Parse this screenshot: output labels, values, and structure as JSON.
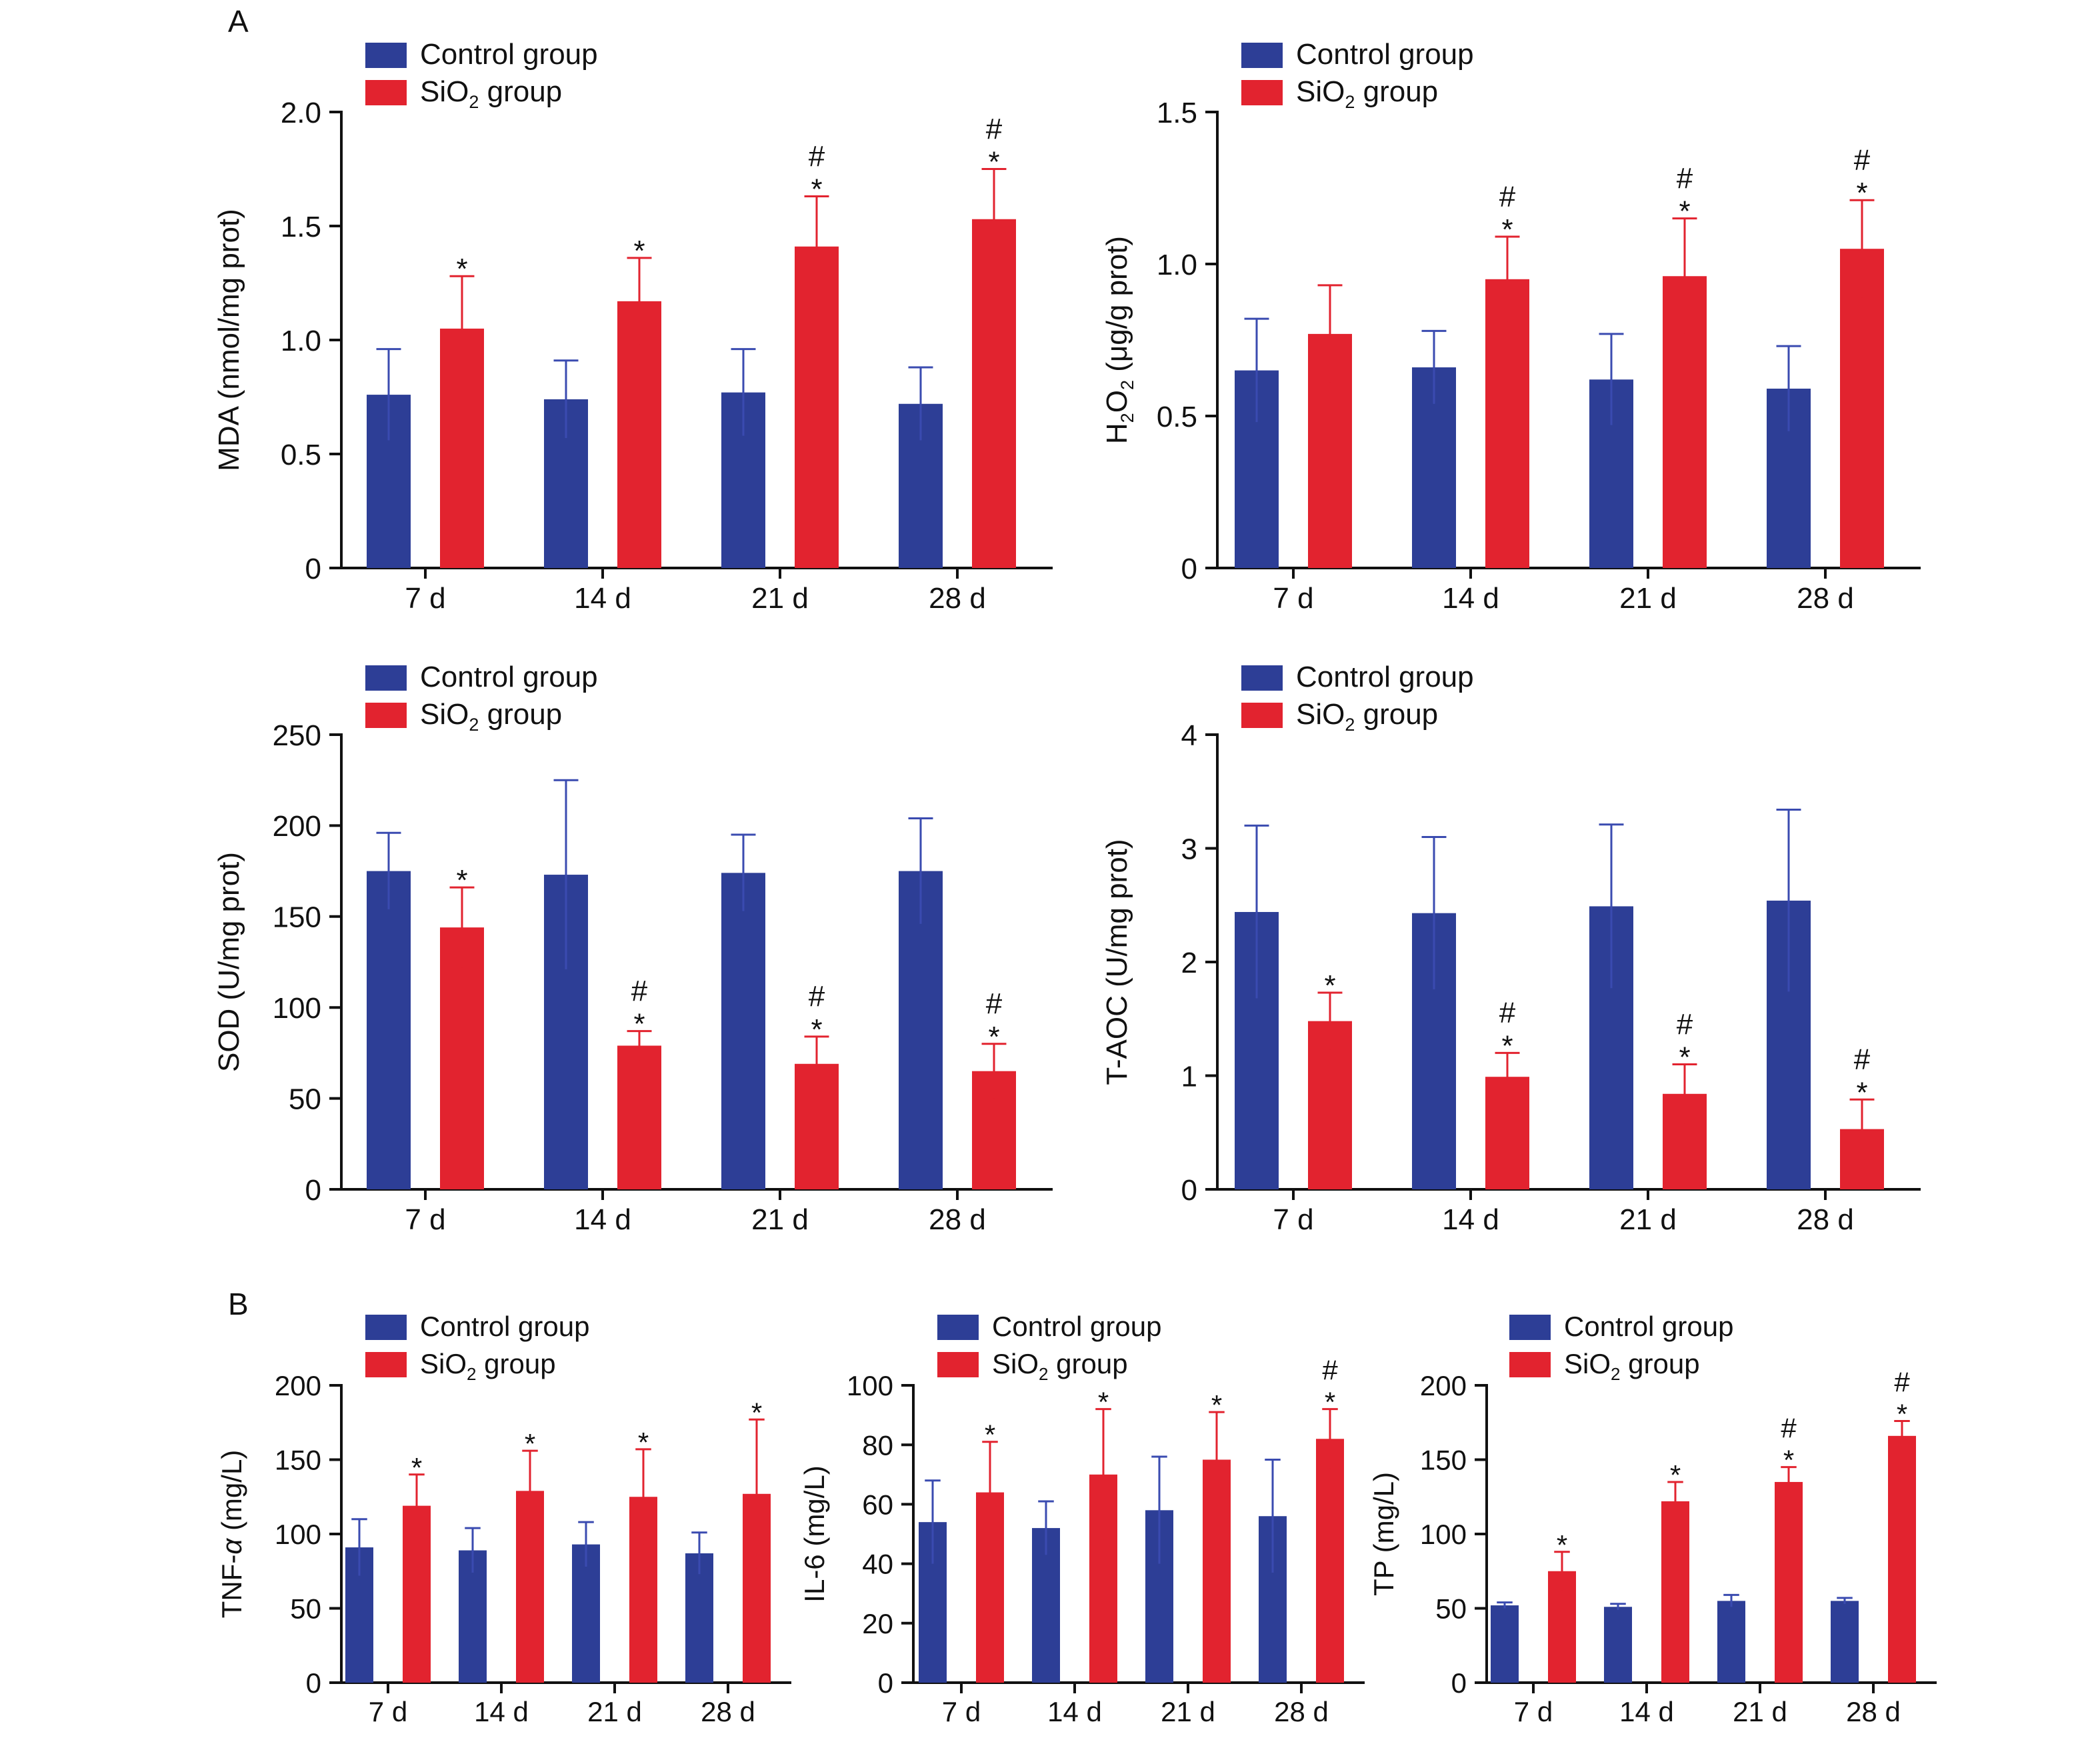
{
  "panel_labels": [
    "A",
    "B"
  ],
  "legend": {
    "control": "Control group",
    "sio2": "SiO",
    "sio2_sub": "2",
    "sio2_suffix": " group"
  },
  "colors": {
    "control": "#2d3e96",
    "sio2": "#e2232f",
    "control_err": "#3a4bb0",
    "sio2_err": "#e2232f",
    "axis": "#111111"
  },
  "chart_data": [
    {
      "type": "bar",
      "panel": "A",
      "categories": [
        "7 d",
        "14 d",
        "21 d",
        "28 d"
      ],
      "ylabel": "MDA (nmol/mg prot)",
      "ylim": [
        0,
        2.0
      ],
      "yticks": [
        0,
        0.5,
        1.0,
        1.5,
        2.0
      ],
      "ytick_labels": [
        "0",
        "0.5",
        "1.0",
        "1.5",
        "2.0"
      ],
      "series": [
        {
          "name": "Control group",
          "values": [
            0.76,
            0.74,
            0.77,
            0.72
          ],
          "errors": [
            0.2,
            0.17,
            0.19,
            0.16
          ]
        },
        {
          "name": "SiO2 group",
          "values": [
            1.05,
            1.17,
            1.41,
            1.53
          ],
          "errors": [
            0.23,
            0.19,
            0.22,
            0.22
          ]
        }
      ],
      "annotations": [
        [
          "",
          "",
          "",
          ""
        ],
        [
          "*",
          "*",
          "#\n*",
          "#\n*"
        ]
      ]
    },
    {
      "type": "bar",
      "panel": "A",
      "categories": [
        "7 d",
        "14 d",
        "21 d",
        "28 d"
      ],
      "ylabel": "H2O2 (μg/g prot)",
      "ylim": [
        0,
        1.5
      ],
      "yticks": [
        0,
        0.5,
        1.0,
        1.5
      ],
      "ytick_labels": [
        "0",
        "0.5",
        "1.0",
        "1.5"
      ],
      "series": [
        {
          "name": "Control group",
          "values": [
            0.65,
            0.66,
            0.62,
            0.59
          ],
          "errors": [
            0.17,
            0.12,
            0.15,
            0.14
          ]
        },
        {
          "name": "SiO2 group",
          "values": [
            0.77,
            0.95,
            0.96,
            1.05
          ],
          "errors": [
            0.16,
            0.14,
            0.19,
            0.16
          ]
        }
      ],
      "annotations": [
        [
          "",
          "",
          "",
          ""
        ],
        [
          "",
          "#\n*",
          "#\n*",
          "#\n*"
        ]
      ]
    },
    {
      "type": "bar",
      "panel": "A",
      "categories": [
        "7 d",
        "14 d",
        "21 d",
        "28 d"
      ],
      "ylabel": "SOD (U/mg prot)",
      "ylim": [
        0,
        250
      ],
      "yticks": [
        0,
        50,
        100,
        150,
        200,
        250
      ],
      "ytick_labels": [
        "0",
        "50",
        "100",
        "150",
        "200",
        "250"
      ],
      "series": [
        {
          "name": "Control group",
          "values": [
            175,
            173,
            174,
            175
          ],
          "errors": [
            21,
            52,
            21,
            29
          ]
        },
        {
          "name": "SiO2 group",
          "values": [
            144,
            79,
            69,
            65
          ],
          "errors": [
            22,
            8,
            15,
            15
          ]
        }
      ],
      "annotations": [
        [
          "",
          "",
          "",
          ""
        ],
        [
          "*",
          "#\n*",
          "#\n*",
          "#\n*"
        ]
      ]
    },
    {
      "type": "bar",
      "panel": "A",
      "categories": [
        "7 d",
        "14 d",
        "21 d",
        "28 d"
      ],
      "ylabel": "T-AOC (U/mg prot)",
      "ylim": [
        0,
        4
      ],
      "yticks": [
        0,
        1,
        2,
        3,
        4
      ],
      "ytick_labels": [
        "0",
        "1",
        "2",
        "3",
        "4"
      ],
      "series": [
        {
          "name": "Control group",
          "values": [
            2.44,
            2.43,
            2.49,
            2.54
          ],
          "errors": [
            0.76,
            0.67,
            0.72,
            0.8
          ]
        },
        {
          "name": "SiO2 group",
          "values": [
            1.48,
            0.99,
            0.84,
            0.53
          ],
          "errors": [
            0.25,
            0.21,
            0.26,
            0.26
          ]
        }
      ],
      "annotations": [
        [
          "",
          "",
          "",
          ""
        ],
        [
          "*",
          "#\n*",
          "#\n*",
          "#\n*"
        ]
      ]
    },
    {
      "type": "bar",
      "panel": "B",
      "categories": [
        "7 d",
        "14 d",
        "21 d",
        "28 d"
      ],
      "ylabel": "TNF-α (mg/L)",
      "ylim": [
        0,
        200
      ],
      "yticks": [
        0,
        50,
        100,
        150,
        200
      ],
      "ytick_labels": [
        "0",
        "50",
        "100",
        "150",
        "200"
      ],
      "series": [
        {
          "name": "Control group",
          "values": [
            91,
            89,
            93,
            87
          ],
          "errors": [
            19,
            15,
            15,
            14
          ]
        },
        {
          "name": "SiO2 group",
          "values": [
            119,
            129,
            125,
            127
          ],
          "errors": [
            21,
            27,
            32,
            50
          ]
        }
      ],
      "annotations": [
        [
          "",
          "",
          "",
          ""
        ],
        [
          "*",
          "*",
          "*",
          "*"
        ]
      ]
    },
    {
      "type": "bar",
      "panel": "B",
      "categories": [
        "7 d",
        "14 d",
        "21 d",
        "28 d"
      ],
      "ylabel": "IL-6 (mg/L)",
      "ylim": [
        0,
        100
      ],
      "yticks": [
        0,
        20,
        40,
        60,
        80,
        100
      ],
      "ytick_labels": [
        "0",
        "20",
        "40",
        "60",
        "80",
        "100"
      ],
      "series": [
        {
          "name": "Control group",
          "values": [
            54,
            52,
            58,
            56
          ],
          "errors": [
            14,
            9,
            18,
            19
          ]
        },
        {
          "name": "SiO2 group",
          "values": [
            64,
            70,
            75,
            82
          ],
          "errors": [
            17,
            22,
            16,
            10
          ]
        }
      ],
      "annotations": [
        [
          "",
          "",
          "",
          ""
        ],
        [
          "*",
          "*",
          "*",
          "#\n*"
        ]
      ]
    },
    {
      "type": "bar",
      "panel": "B",
      "categories": [
        "7 d",
        "14 d",
        "21 d",
        "28 d"
      ],
      "ylabel": "TP (mg/L)",
      "ylim": [
        0,
        200
      ],
      "yticks": [
        0,
        50,
        100,
        150,
        200
      ],
      "ytick_labels": [
        "0",
        "50",
        "100",
        "150",
        "200"
      ],
      "series": [
        {
          "name": "Control group",
          "values": [
            52,
            51,
            55,
            55
          ],
          "errors": [
            2,
            2,
            4,
            2
          ]
        },
        {
          "name": "SiO2 group",
          "values": [
            75,
            122,
            135,
            166
          ],
          "errors": [
            13,
            13,
            10,
            10
          ]
        }
      ],
      "annotations": [
        [
          "",
          "",
          "",
          ""
        ],
        [
          "*",
          "*",
          "#\n*",
          "#\n*"
        ]
      ]
    }
  ]
}
